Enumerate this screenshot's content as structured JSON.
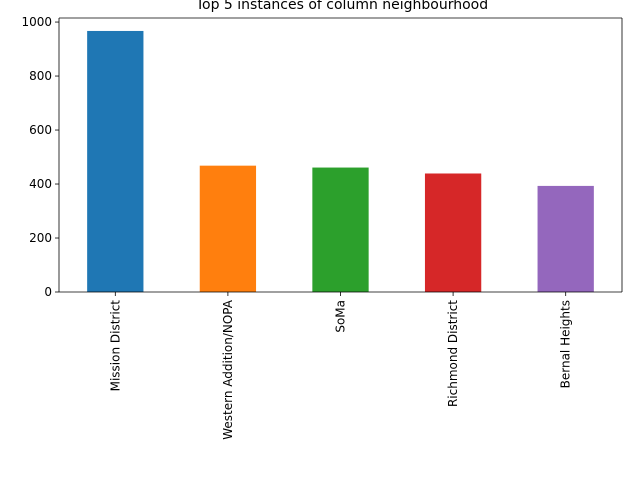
{
  "chart_data": {
    "type": "bar",
    "title": "Top 5 instances of column neighbourhood",
    "xlabel": "",
    "ylabel": "",
    "categories": [
      "Mission District",
      "Western Addition/NOPA",
      "SoMa",
      "Richmond District",
      "Bernal Heights"
    ],
    "values": [
      967,
      468,
      461,
      439,
      393
    ],
    "colors": [
      "#1f77b4",
      "#ff7f0e",
      "#2ca02c",
      "#d62728",
      "#9467bd"
    ],
    "ylim": [
      0,
      1015
    ],
    "yticks": [
      0,
      200,
      400,
      600,
      800,
      1000
    ],
    "ytick_labels": [
      "0",
      "200",
      "400",
      "600",
      "800",
      "1000"
    ],
    "grid": false,
    "legend": "none"
  }
}
